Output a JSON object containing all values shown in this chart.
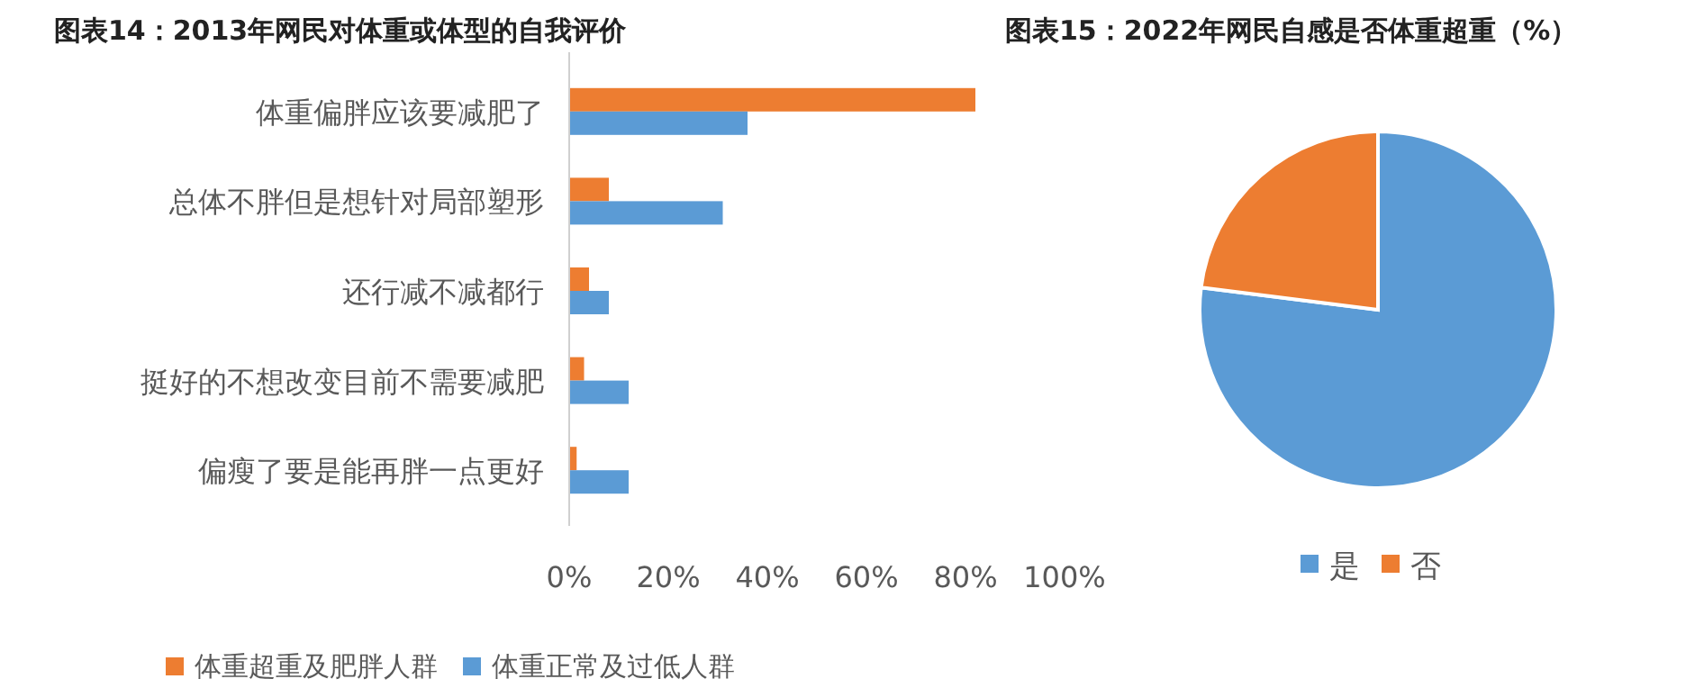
{
  "chart_data": [
    {
      "type": "bar",
      "orientation": "horizontal",
      "title": "图表14：2013年网民对体重或体型的自我评价",
      "categories": [
        "体重偏胖应该要减肥了",
        "总体不胖但是想针对局部塑形",
        "还行减不减都行",
        "挺好的不想改变目前不需要减肥",
        "偏瘦了要是能再胖一点更好"
      ],
      "series": [
        {
          "name": "体重超重及肥胖人群",
          "color": "#ed7d31",
          "values": [
            82,
            8,
            4,
            3,
            1.5
          ]
        },
        {
          "name": "体重正常及过低人群",
          "color": "#5b9bd5",
          "values": [
            36,
            31,
            8,
            12,
            12
          ]
        }
      ],
      "xlim": [
        0,
        100
      ],
      "xticks": [
        {
          "value": 0,
          "label": "0%"
        },
        {
          "value": 20,
          "label": "20%"
        },
        {
          "value": 40,
          "label": "40%"
        },
        {
          "value": 60,
          "label": "60%"
        },
        {
          "value": 80,
          "label": "80%"
        },
        {
          "value": 100,
          "label": "100%"
        }
      ],
      "legend": "bottom"
    },
    {
      "type": "pie",
      "title": "图表15：2022年网民自感是否体重超重（%）",
      "categories": [
        "是",
        "否"
      ],
      "values": [
        77,
        23
      ],
      "colors": [
        "#5b9bd5",
        "#ed7d31"
      ],
      "legend": "bottom"
    }
  ]
}
